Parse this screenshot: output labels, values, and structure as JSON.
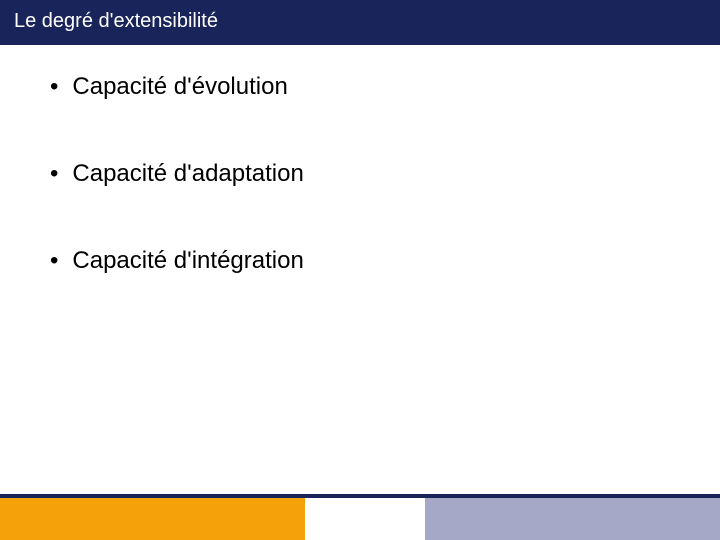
{
  "colors": {
    "header_bg": "#18245a",
    "header_text": "#ffffff",
    "bullet_text": "#000000",
    "footer_line": "#18245a",
    "footer_left": "#f5a20a",
    "footer_mid": "#ffffff",
    "footer_right": "#a6a8c7"
  },
  "header": {
    "title": "Le degré d'extensibilité"
  },
  "bullets": [
    {
      "text": "Capacité d'évolution"
    },
    {
      "text": "Capacité d'adaptation"
    },
    {
      "text": "Capacité d'intégration"
    }
  ],
  "layout": {
    "footer_left_width": 305,
    "footer_mid_width": 120,
    "footer_right_width": 295
  }
}
